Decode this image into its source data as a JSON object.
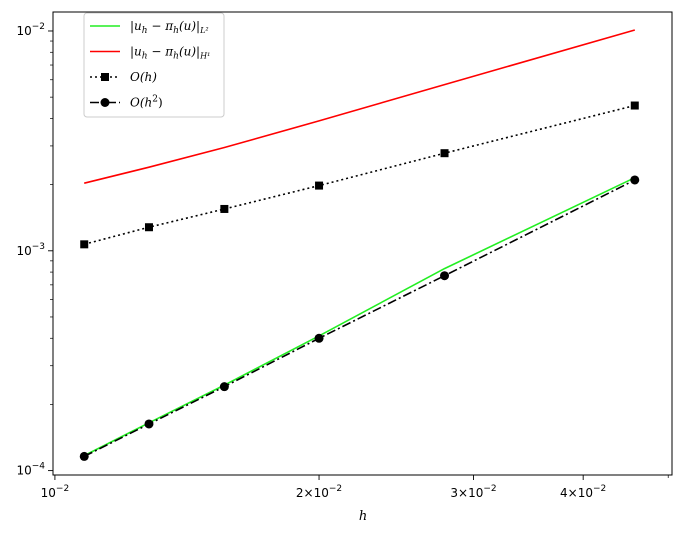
{
  "chart_data": {
    "type": "line",
    "xlabel": "h",
    "ylabel": "",
    "x_scale": "log",
    "y_scale": "log",
    "xlim": [
      0.00995,
      0.0505
    ],
    "ylim": [
      9.55e-05,
      0.0122
    ],
    "grid": false,
    "legend_placement": "top-left",
    "x_major_ticks": [
      {
        "value": 0.01,
        "mantissa": "",
        "exponent": "−2"
      },
      {
        "value": 0.02,
        "mantissa": "2×",
        "exponent": "−2"
      },
      {
        "value": 0.03,
        "mantissa": "3×",
        "exponent": "−2"
      },
      {
        "value": 0.04,
        "mantissa": "4×",
        "exponent": "−2"
      }
    ],
    "y_major_ticks": [
      {
        "value": 0.0001,
        "exponent": "−4"
      },
      {
        "value": 0.001,
        "exponent": "−3"
      },
      {
        "value": 0.01,
        "exponent": "−2"
      }
    ],
    "x": [
      0.0108,
      0.0128,
      0.0156,
      0.02,
      0.0278,
      0.0458
    ],
    "series": [
      {
        "name": "|u_h − π_h(u)|_{L²}",
        "legend": {
          "main": "|u",
          "sub1": "h",
          "mid": " − π",
          "sub2": "h",
          "tail": "(u)|",
          "sub3": "L²"
        },
        "values": [
          0.000117,
          0.000165,
          0.000245,
          0.00041,
          0.00083,
          0.00215
        ],
        "color": "#22ee22",
        "dash": "",
        "marker": "none"
      },
      {
        "name": "|u_h − π_h(u)|_{H¹}",
        "legend": {
          "main": "|u",
          "sub1": "h",
          "mid": " − π",
          "sub2": "h",
          "tail": "(u)|",
          "sub3": "H¹"
        },
        "values": [
          0.00203,
          0.0024,
          0.00295,
          0.0039,
          0.0057,
          0.0101
        ],
        "color": "#ff0000",
        "dash": "",
        "marker": "none"
      },
      {
        "name": "O(h)",
        "legend": {
          "main": "O(h)"
        },
        "values": [
          0.00107,
          0.00128,
          0.00155,
          0.00198,
          0.00278,
          0.00458
        ],
        "color": "#000000",
        "dash": "2,3",
        "marker": "square"
      },
      {
        "name": "O(h²)",
        "legend": {
          "main": "O(h",
          "sup": "2",
          "tail": ")"
        },
        "values": [
          0.000116,
          0.000163,
          0.000241,
          0.0004,
          0.00077,
          0.0021
        ],
        "color": "#000000",
        "dash": "9,3,2,3",
        "marker": "circle"
      }
    ]
  }
}
